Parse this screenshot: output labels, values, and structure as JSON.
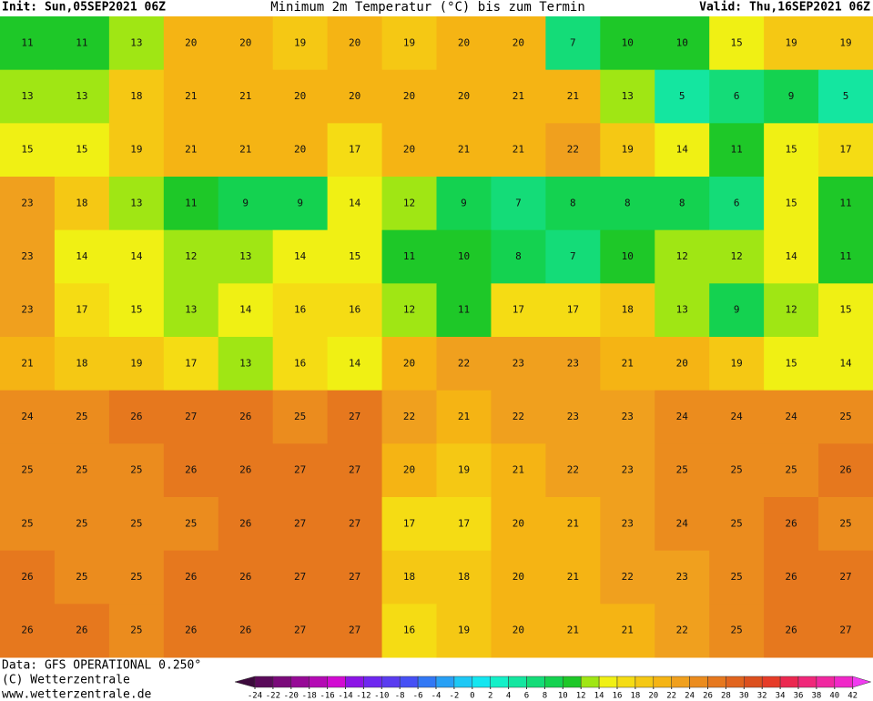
{
  "header": {
    "init": "Init: Sun,05SEP2021 06Z",
    "title": "Minimum 2m Temperatur (°C) bis zum Termin",
    "valid": "Valid: Thu,16SEP2021 06Z"
  },
  "map": {
    "rows": [
      [
        11,
        11,
        13,
        20,
        20,
        19,
        20,
        19,
        20,
        20,
        7,
        10,
        10,
        15,
        19,
        19
      ],
      [
        13,
        13,
        18,
        21,
        21,
        20,
        20,
        20,
        20,
        21,
        21,
        13,
        5,
        6,
        9,
        5
      ],
      [
        15,
        15,
        19,
        21,
        21,
        20,
        17,
        20,
        21,
        21,
        22,
        19,
        14,
        11,
        15,
        17
      ],
      [
        23,
        18,
        13,
        11,
        9,
        9,
        14,
        12,
        9,
        7,
        8,
        8,
        8,
        6,
        15,
        11
      ],
      [
        23,
        14,
        14,
        12,
        13,
        14,
        15,
        11,
        10,
        8,
        7,
        10,
        12,
        12,
        14,
        11
      ],
      [
        23,
        17,
        15,
        13,
        14,
        16,
        16,
        12,
        11,
        17,
        17,
        18,
        13,
        9,
        12,
        15
      ],
      [
        21,
        18,
        19,
        17,
        13,
        16,
        14,
        20,
        22,
        23,
        23,
        21,
        20,
        19,
        15,
        14
      ],
      [
        24,
        25,
        26,
        27,
        26,
        25,
        27,
        22,
        21,
        22,
        23,
        23,
        24,
        24,
        24,
        25
      ],
      [
        25,
        25,
        25,
        26,
        26,
        27,
        27,
        20,
        19,
        21,
        22,
        23,
        25,
        25,
        25,
        26
      ],
      [
        25,
        25,
        25,
        25,
        26,
        27,
        27,
        17,
        17,
        20,
        21,
        23,
        24,
        25,
        26,
        25
      ],
      [
        26,
        25,
        25,
        26,
        26,
        27,
        27,
        18,
        18,
        20,
        21,
        22,
        23,
        25,
        26,
        27
      ],
      [
        26,
        26,
        25,
        26,
        26,
        27,
        27,
        16,
        19,
        20,
        21,
        21,
        22,
        25,
        26,
        27
      ]
    ]
  },
  "footer": {
    "data": "Data: GFS OPERATIONAL 0.250°",
    "copyright": "(C) Wetterzentrale",
    "url": "www.wetterzentrale.de"
  },
  "colorbar": {
    "ticks": [
      -24,
      -22,
      -20,
      -18,
      -16,
      -14,
      -12,
      -10,
      -8,
      -6,
      -4,
      -2,
      0,
      2,
      4,
      6,
      8,
      10,
      12,
      14,
      16,
      18,
      20,
      22,
      24,
      26,
      28,
      30,
      32,
      34,
      36,
      38,
      40,
      42
    ],
    "colors": [
      "#3c0a3c",
      "#5a0a5a",
      "#7a0a7a",
      "#960a96",
      "#b40ab4",
      "#d20ad2",
      "#8c14e6",
      "#6e28f0",
      "#5a3cf0",
      "#4650f5",
      "#3278f5",
      "#28a0f5",
      "#1ec8f5",
      "#14e6f0",
      "#14f0c8",
      "#14e6a0",
      "#14dc78",
      "#14d250",
      "#1ec828",
      "#a0e614",
      "#f0f014",
      "#f5dc14",
      "#f5c814",
      "#f5b414",
      "#f0a01e",
      "#eb8c1e",
      "#e6781e",
      "#e1641e",
      "#dc501e",
      "#e63c28",
      "#eb2850",
      "#f0287a",
      "#f028a0",
      "#f028c8",
      "#f03cf0"
    ]
  }
}
